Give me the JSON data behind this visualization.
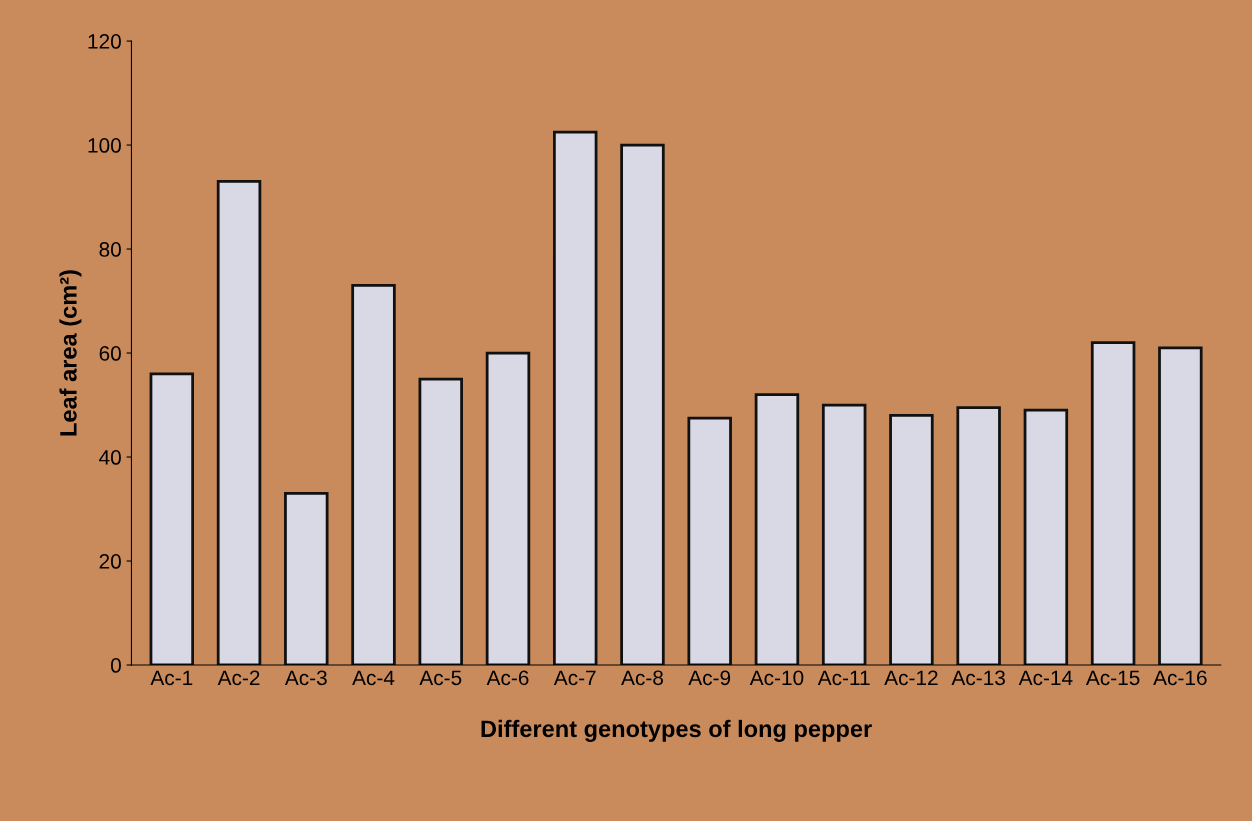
{
  "chart_data": {
    "type": "bar",
    "xlabel": "Different genotypes of long pepper",
    "ylabel": "Leaf area (cm²)",
    "categories": [
      "Ac-1",
      "Ac-2",
      "Ac-3",
      "Ac-4",
      "Ac-5",
      "Ac-6",
      "Ac-7",
      "Ac-8",
      "Ac-9",
      "Ac-10",
      "Ac-11",
      "Ac-12",
      "Ac-13",
      "Ac-14",
      "Ac-15",
      "Ac-16"
    ],
    "values": [
      56,
      93,
      33,
      73,
      55,
      60,
      102.5,
      100,
      47.5,
      52,
      50,
      48,
      49.5,
      49,
      62,
      61
    ],
    "color": "#d9d9e6",
    "ylim": [
      0,
      120
    ],
    "yticks": [
      0,
      20,
      40,
      60,
      80,
      100,
      120
    ],
    "grid": false
  }
}
